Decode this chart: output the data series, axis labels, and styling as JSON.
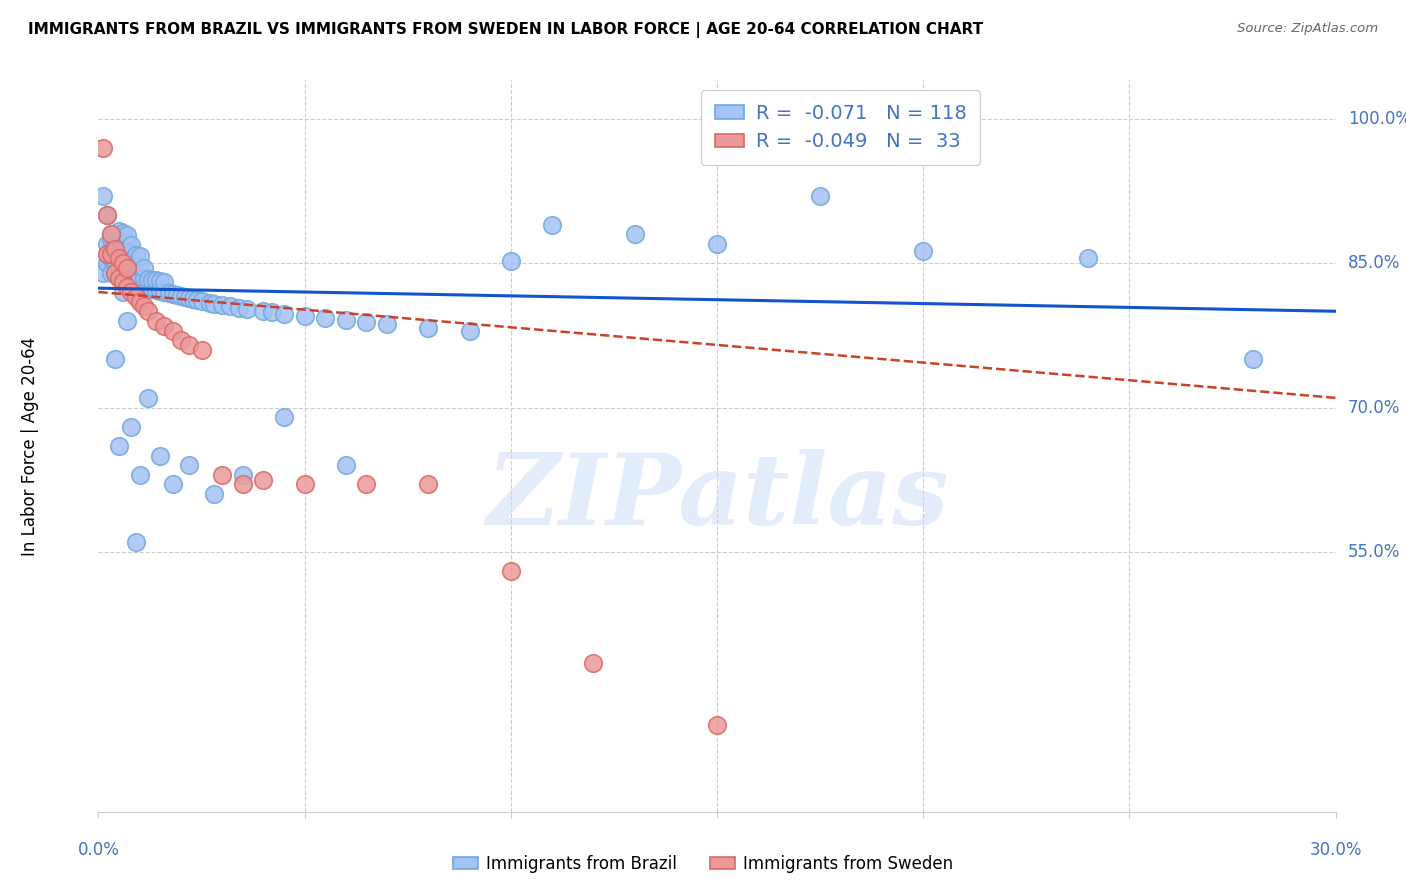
{
  "title": "IMMIGRANTS FROM BRAZIL VS IMMIGRANTS FROM SWEDEN IN LABOR FORCE | AGE 20-64 CORRELATION CHART",
  "source": "Source: ZipAtlas.com",
  "ylabel": "In Labor Force | Age 20-64",
  "xlim": [
    0.0,
    0.3
  ],
  "ylim": [
    0.28,
    1.04
  ],
  "ytick_positions": [
    1.0,
    0.85,
    0.7,
    0.55
  ],
  "ytick_labels": [
    "100.0%",
    "85.0%",
    "70.0%",
    "55.0%"
  ],
  "xtick_positions": [
    0.0,
    0.05,
    0.1,
    0.15,
    0.2,
    0.25,
    0.3
  ],
  "brazil_R": "-0.071",
  "brazil_N": "118",
  "sweden_R": "-0.049",
  "sweden_N": "33",
  "brazil_color": "#a4c2f4",
  "sweden_color": "#ea9999",
  "brazil_edge_color": "#6fa8dc",
  "sweden_edge_color": "#e06666",
  "brazil_line_color": "#1155cc",
  "sweden_line_color": "#cc4125",
  "brazil_line_dash": "solid",
  "sweden_line_dash": "dashed",
  "watermark_text": "ZIPatlas",
  "watermark_color": "#c9daf8",
  "watermark_alpha": 0.5,
  "brazil_legend_label": "Immigrants from Brazil",
  "sweden_legend_label": "Immigrants from Sweden",
  "brazil_scatter_x": [
    0.001,
    0.002,
    0.002,
    0.002,
    0.003,
    0.003,
    0.003,
    0.003,
    0.004,
    0.004,
    0.004,
    0.004,
    0.004,
    0.005,
    0.005,
    0.005,
    0.005,
    0.005,
    0.005,
    0.006,
    0.006,
    0.006,
    0.006,
    0.006,
    0.006,
    0.007,
    0.007,
    0.007,
    0.007,
    0.007,
    0.007,
    0.008,
    0.008,
    0.008,
    0.008,
    0.008,
    0.009,
    0.009,
    0.009,
    0.009,
    0.01,
    0.01,
    0.01,
    0.01,
    0.011,
    0.011,
    0.011,
    0.012,
    0.012,
    0.013,
    0.013,
    0.014,
    0.014,
    0.015,
    0.015,
    0.016,
    0.016,
    0.017,
    0.018,
    0.019,
    0.02,
    0.021,
    0.022,
    0.023,
    0.024,
    0.025,
    0.027,
    0.028,
    0.03,
    0.032,
    0.034,
    0.036,
    0.04,
    0.042,
    0.045,
    0.05,
    0.055,
    0.06,
    0.065,
    0.07,
    0.08,
    0.09,
    0.1,
    0.11,
    0.13,
    0.15,
    0.175,
    0.2,
    0.24,
    0.28,
    0.001,
    0.002,
    0.003,
    0.004,
    0.005,
    0.006,
    0.007,
    0.008,
    0.009,
    0.01,
    0.012,
    0.015,
    0.018,
    0.022,
    0.028,
    0.035,
    0.045,
    0.06
  ],
  "brazil_scatter_y": [
    0.84,
    0.85,
    0.86,
    0.87,
    0.84,
    0.855,
    0.865,
    0.875,
    0.84,
    0.852,
    0.863,
    0.872,
    0.88,
    0.835,
    0.848,
    0.858,
    0.867,
    0.875,
    0.883,
    0.832,
    0.843,
    0.855,
    0.865,
    0.873,
    0.881,
    0.83,
    0.841,
    0.852,
    0.862,
    0.871,
    0.879,
    0.828,
    0.839,
    0.85,
    0.86,
    0.869,
    0.827,
    0.838,
    0.849,
    0.858,
    0.826,
    0.836,
    0.847,
    0.857,
    0.825,
    0.835,
    0.845,
    0.824,
    0.834,
    0.823,
    0.833,
    0.822,
    0.832,
    0.821,
    0.831,
    0.82,
    0.83,
    0.819,
    0.818,
    0.817,
    0.816,
    0.815,
    0.814,
    0.813,
    0.812,
    0.811,
    0.809,
    0.808,
    0.806,
    0.805,
    0.803,
    0.802,
    0.8,
    0.799,
    0.797,
    0.795,
    0.793,
    0.791,
    0.789,
    0.787,
    0.783,
    0.779,
    0.852,
    0.89,
    0.88,
    0.87,
    0.92,
    0.863,
    0.855,
    0.75,
    0.92,
    0.9,
    0.88,
    0.75,
    0.66,
    0.82,
    0.79,
    0.68,
    0.56,
    0.63,
    0.71,
    0.65,
    0.62,
    0.64,
    0.61,
    0.63,
    0.69,
    0.64
  ],
  "sweden_scatter_x": [
    0.001,
    0.002,
    0.002,
    0.003,
    0.003,
    0.004,
    0.004,
    0.005,
    0.005,
    0.006,
    0.006,
    0.007,
    0.007,
    0.008,
    0.009,
    0.01,
    0.011,
    0.012,
    0.014,
    0.016,
    0.018,
    0.02,
    0.022,
    0.025,
    0.03,
    0.035,
    0.04,
    0.05,
    0.065,
    0.08,
    0.1,
    0.12,
    0.15
  ],
  "sweden_scatter_y": [
    0.97,
    0.9,
    0.86,
    0.86,
    0.88,
    0.84,
    0.865,
    0.835,
    0.855,
    0.83,
    0.85,
    0.825,
    0.845,
    0.82,
    0.815,
    0.81,
    0.805,
    0.8,
    0.79,
    0.785,
    0.78,
    0.77,
    0.765,
    0.76,
    0.63,
    0.62,
    0.625,
    0.62,
    0.62,
    0.62,
    0.53,
    0.435,
    0.37
  ],
  "brazil_trend_x": [
    0.0,
    0.3
  ],
  "brazil_trend_y": [
    0.824,
    0.8
  ],
  "sweden_trend_x": [
    0.0,
    0.3
  ],
  "sweden_trend_y": [
    0.82,
    0.71
  ]
}
